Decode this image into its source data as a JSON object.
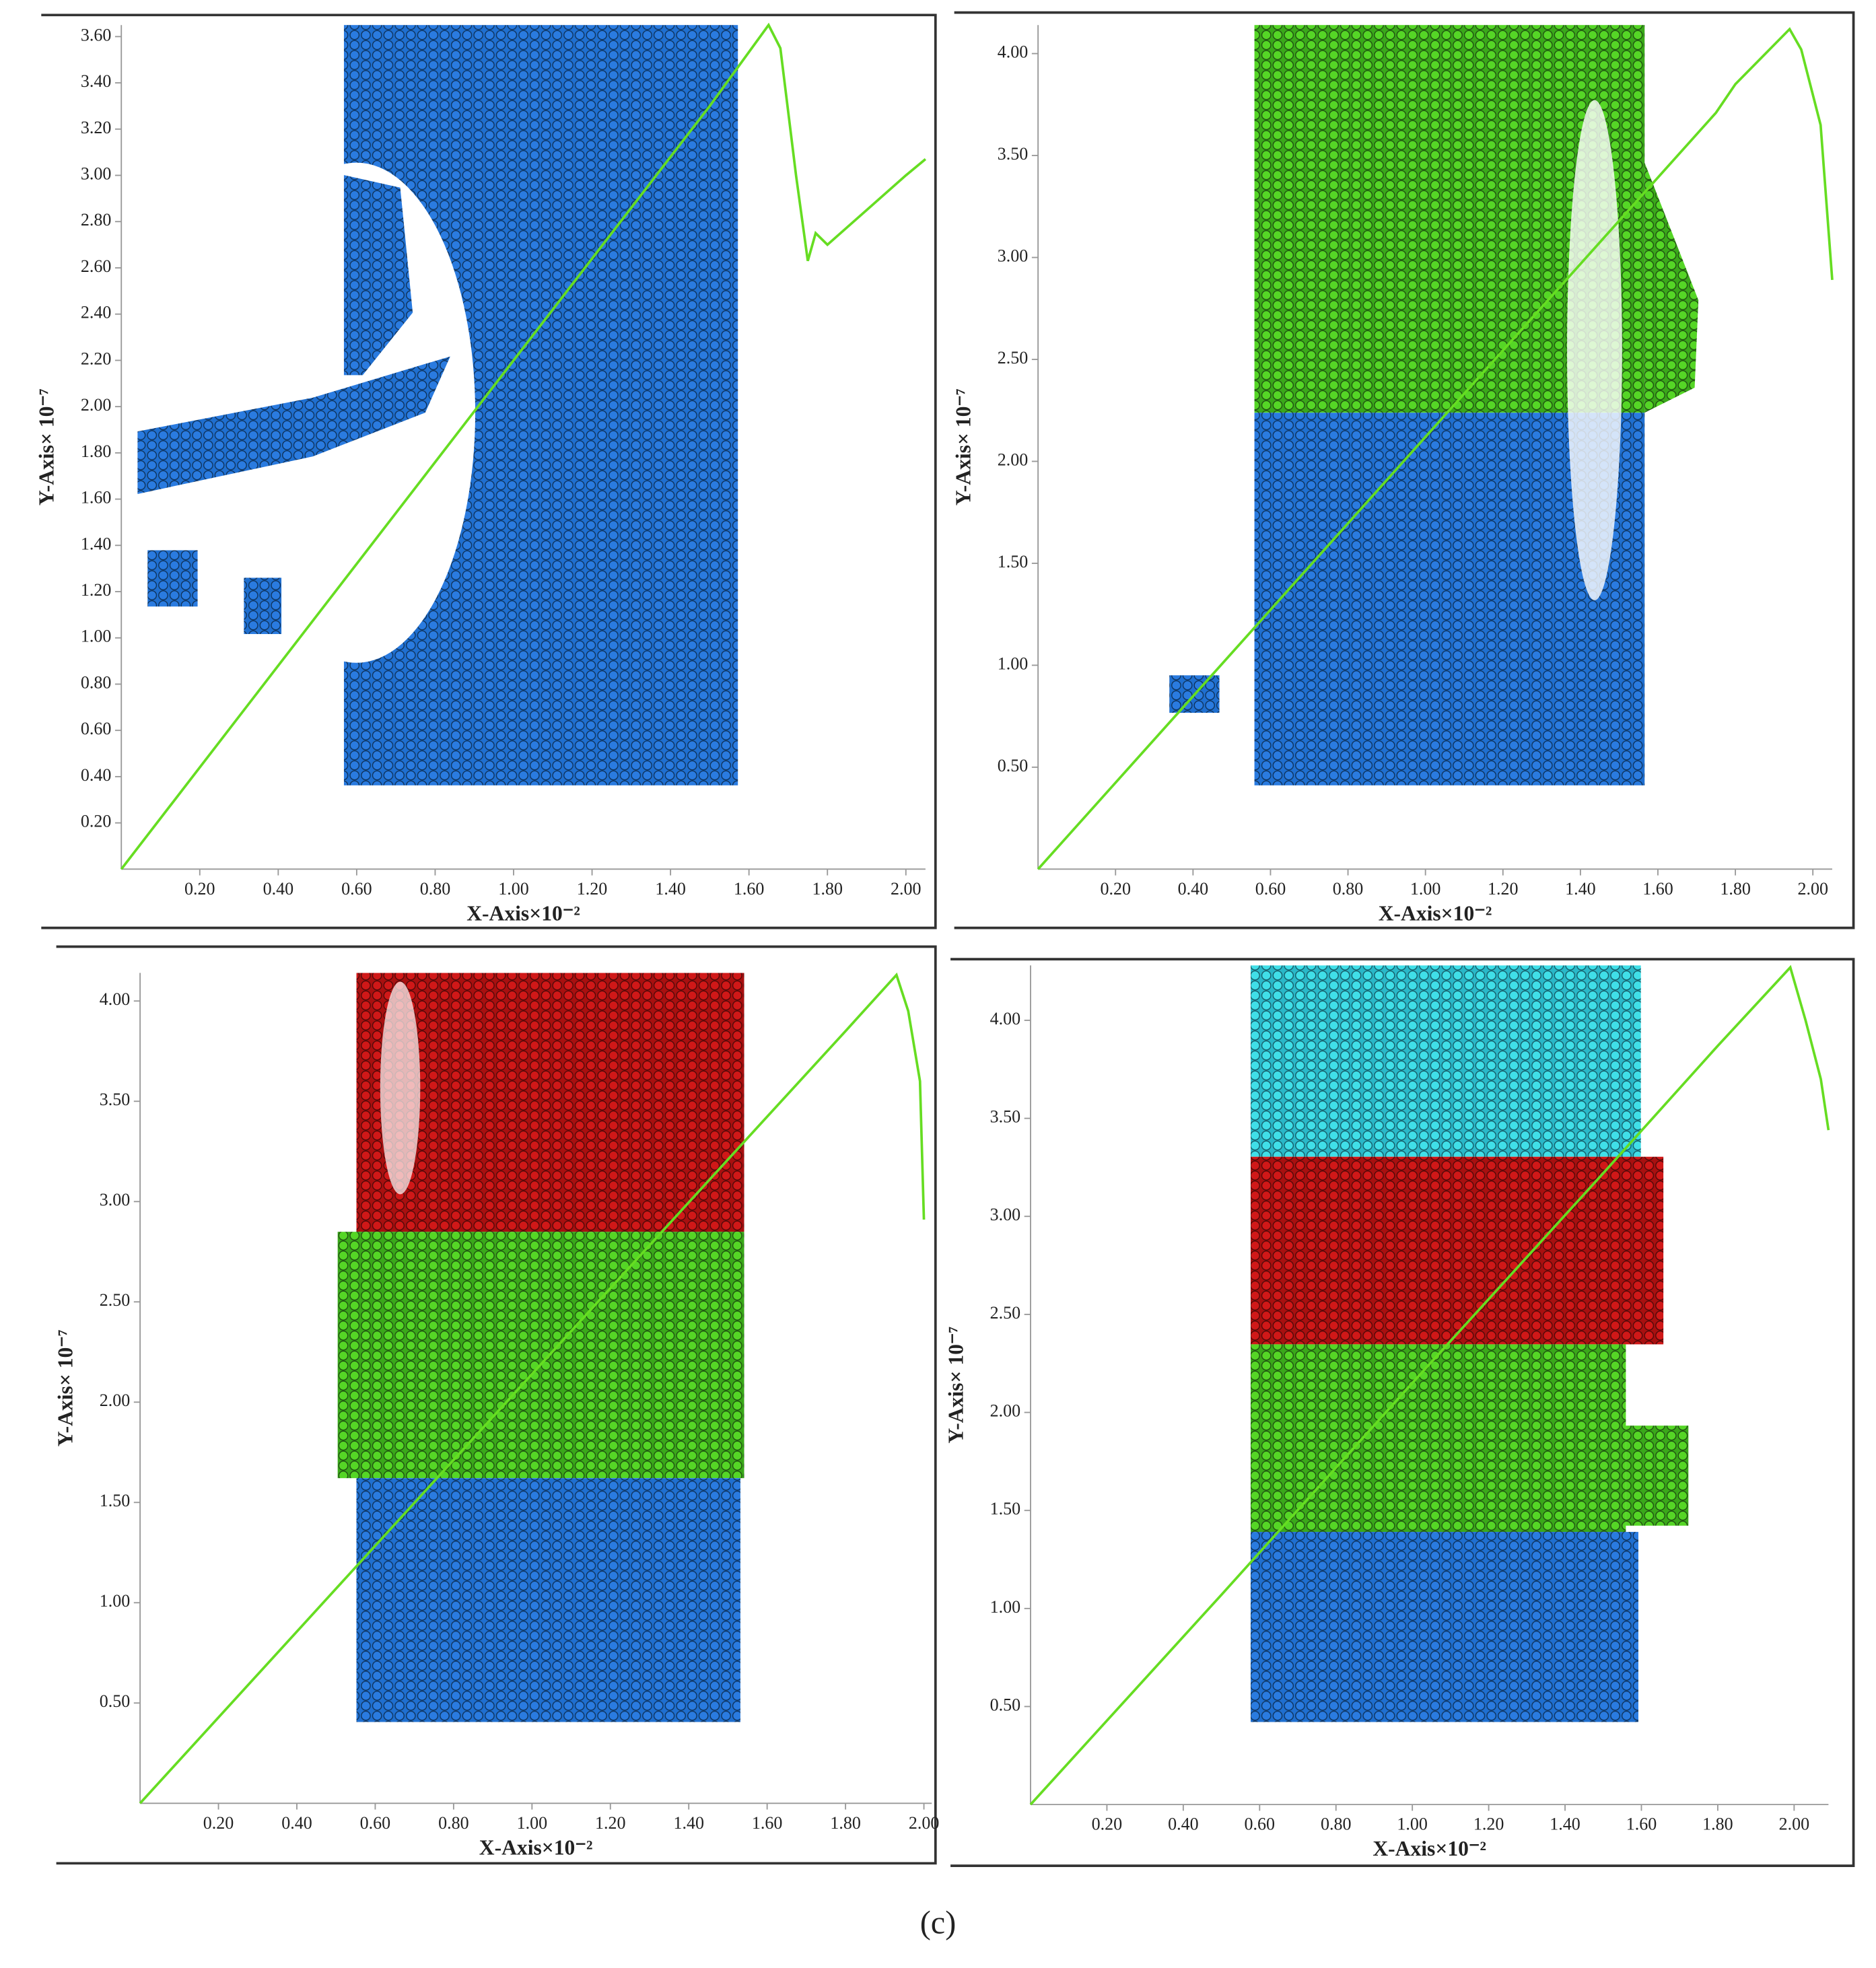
{
  "chart_data": [
    {
      "type": "line",
      "xlabel": "X-Axis×10⁻²",
      "ylabel": "Y-Axis× 10⁻⁷",
      "color": "#66dd22",
      "xlim": [
        0,
        2.05
      ],
      "ylim": [
        0,
        3.65
      ],
      "xticks": [
        {
          "value": 0.2,
          "label": "0.20"
        },
        {
          "value": 0.4,
          "label": "0.40"
        },
        {
          "value": 0.6,
          "label": "0.60"
        },
        {
          "value": 0.8,
          "label": "0.80"
        },
        {
          "value": 1.0,
          "label": "1.00"
        },
        {
          "value": 1.2,
          "label": "1.20"
        },
        {
          "value": 1.4,
          "label": "1.40"
        },
        {
          "value": 1.6,
          "label": "1.60"
        },
        {
          "value": 1.8,
          "label": "1.80"
        },
        {
          "value": 2.0,
          "label": "2.00"
        }
      ],
      "yticks": [
        {
          "value": 0.2,
          "label": "0.20"
        },
        {
          "value": 0.4,
          "label": "0.40"
        },
        {
          "value": 0.6,
          "label": "0.60"
        },
        {
          "value": 0.8,
          "label": "0.80"
        },
        {
          "value": 1.0,
          "label": "1.00"
        },
        {
          "value": 1.2,
          "label": "1.20"
        },
        {
          "value": 1.4,
          "label": "1.40"
        },
        {
          "value": 1.6,
          "label": "1.60"
        },
        {
          "value": 1.8,
          "label": "1.80"
        },
        {
          "value": 2.0,
          "label": "2.00"
        },
        {
          "value": 2.2,
          "label": "2.20"
        },
        {
          "value": 2.4,
          "label": "2.40"
        },
        {
          "value": 2.6,
          "label": "2.60"
        },
        {
          "value": 2.8,
          "label": "2.80"
        },
        {
          "value": 3.0,
          "label": "3.00"
        },
        {
          "value": 3.2,
          "label": "3.20"
        },
        {
          "value": 3.4,
          "label": "3.40"
        },
        {
          "value": 3.6,
          "label": "3.60"
        }
      ],
      "x": [
        0,
        0.5,
        1.0,
        1.5,
        1.65,
        1.68,
        1.72,
        1.75,
        1.77,
        1.8,
        1.9,
        2.0,
        2.05
      ],
      "values": [
        0,
        1.1,
        2.2,
        3.3,
        3.65,
        3.55,
        3.0,
        2.63,
        2.75,
        2.7,
        2.85,
        3.0,
        3.07
      ]
    },
    {
      "type": "line",
      "xlabel": "X-Axis×10⁻²",
      "ylabel": "Y-Axis× 10⁻⁷",
      "color": "#66dd22",
      "xlim": [
        0,
        2.05
      ],
      "ylim": [
        0,
        4.14
      ],
      "xticks": [
        {
          "value": 0.2,
          "label": "0.20"
        },
        {
          "value": 0.4,
          "label": "0.40"
        },
        {
          "value": 0.6,
          "label": "0.60"
        },
        {
          "value": 0.8,
          "label": "0.80"
        },
        {
          "value": 1.0,
          "label": "1.00"
        },
        {
          "value": 1.2,
          "label": "1.20"
        },
        {
          "value": 1.4,
          "label": "1.40"
        },
        {
          "value": 1.6,
          "label": "1.60"
        },
        {
          "value": 1.8,
          "label": "1.80"
        },
        {
          "value": 2.0,
          "label": "2.00"
        }
      ],
      "yticks": [
        {
          "value": 0.5,
          "label": "0.50"
        },
        {
          "value": 1.0,
          "label": "1.00"
        },
        {
          "value": 1.5,
          "label": "1.50"
        },
        {
          "value": 2.0,
          "label": "2.00"
        },
        {
          "value": 2.5,
          "label": "2.50"
        },
        {
          "value": 3.0,
          "label": "3.00"
        },
        {
          "value": 3.5,
          "label": "3.50"
        },
        {
          "value": 4.0,
          "label": "4.00"
        }
      ],
      "x": [
        0,
        0.5,
        1.0,
        1.5,
        1.75,
        1.8,
        1.94,
        1.97,
        2.02,
        2.05
      ],
      "values": [
        0,
        1.06,
        2.12,
        3.18,
        3.71,
        3.85,
        4.12,
        4.02,
        3.65,
        2.89
      ]
    },
    {
      "type": "line",
      "xlabel": "X-Axis×10⁻²",
      "ylabel": "Y-Axis× 10⁻⁷",
      "color": "#66dd22",
      "xlim": [
        0,
        2.02
      ],
      "ylim": [
        0,
        4.14
      ],
      "xticks": [
        {
          "value": 0.2,
          "label": "0.20"
        },
        {
          "value": 0.4,
          "label": "0.40"
        },
        {
          "value": 0.6,
          "label": "0.60"
        },
        {
          "value": 0.8,
          "label": "0.80"
        },
        {
          "value": 1.0,
          "label": "1.00"
        },
        {
          "value": 1.2,
          "label": "1.20"
        },
        {
          "value": 1.4,
          "label": "1.40"
        },
        {
          "value": 1.6,
          "label": "1.60"
        },
        {
          "value": 1.8,
          "label": "1.80"
        },
        {
          "value": 2.0,
          "label": "2.00"
        }
      ],
      "yticks": [
        {
          "value": 0.5,
          "label": "0.50"
        },
        {
          "value": 1.0,
          "label": "1.00"
        },
        {
          "value": 1.5,
          "label": "1.50"
        },
        {
          "value": 2.0,
          "label": "2.00"
        },
        {
          "value": 2.5,
          "label": "2.50"
        },
        {
          "value": 3.0,
          "label": "3.00"
        },
        {
          "value": 3.5,
          "label": "3.50"
        },
        {
          "value": 4.0,
          "label": "4.00"
        }
      ],
      "x": [
        0,
        0.5,
        1.0,
        1.5,
        1.8,
        1.93,
        1.96,
        1.99,
        2.0
      ],
      "values": [
        0,
        1.07,
        2.14,
        3.21,
        3.85,
        4.13,
        3.95,
        3.6,
        2.91
      ]
    },
    {
      "type": "line",
      "xlabel": "X-Axis×10⁻²",
      "ylabel": "Y-Axis× 10⁻⁷",
      "color": "#66dd22",
      "xlim": [
        0,
        2.09
      ],
      "ylim": [
        0,
        4.28
      ],
      "xticks": [
        {
          "value": 0.2,
          "label": "0.20"
        },
        {
          "value": 0.4,
          "label": "0.40"
        },
        {
          "value": 0.6,
          "label": "0.60"
        },
        {
          "value": 0.8,
          "label": "0.80"
        },
        {
          "value": 1.0,
          "label": "1.00"
        },
        {
          "value": 1.2,
          "label": "1.20"
        },
        {
          "value": 1.4,
          "label": "1.40"
        },
        {
          "value": 1.6,
          "label": "1.60"
        },
        {
          "value": 1.8,
          "label": "1.80"
        },
        {
          "value": 2.0,
          "label": "2.00"
        }
      ],
      "yticks": [
        {
          "value": 0.5,
          "label": "0.50"
        },
        {
          "value": 1.0,
          "label": "1.00"
        },
        {
          "value": 1.5,
          "label": "1.50"
        },
        {
          "value": 2.0,
          "label": "2.00"
        },
        {
          "value": 2.5,
          "label": "2.50"
        },
        {
          "value": 3.0,
          "label": "3.00"
        },
        {
          "value": 3.5,
          "label": "3.50"
        },
        {
          "value": 4.0,
          "label": "4.00"
        }
      ],
      "x": [
        0,
        0.5,
        1.0,
        1.5,
        1.8,
        1.99,
        2.03,
        2.07,
        2.09
      ],
      "values": [
        0,
        1.07,
        2.15,
        3.22,
        3.87,
        4.27,
        4.0,
        3.7,
        3.44
      ]
    }
  ],
  "caption": "(c)"
}
